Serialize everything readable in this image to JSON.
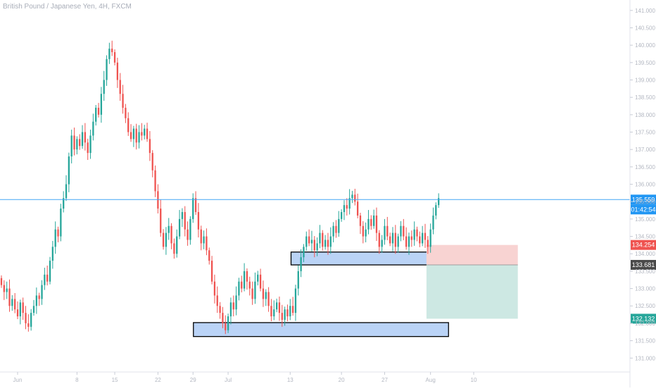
{
  "chart_data": {
    "type": "candlestick",
    "title": "British Pound / Japanese Yen, 4H, FXCM",
    "ylim": [
      130.6,
      141.3
    ],
    "y_ticks": [
      "141.500",
      "141.000",
      "140.500",
      "140.000",
      "139.500",
      "139.000",
      "138.500",
      "138.000",
      "137.500",
      "137.000",
      "136.500",
      "136.000",
      "135.500",
      "135.000",
      "134.500",
      "134.000",
      "133.500",
      "133.000",
      "132.500",
      "132.000",
      "131.500",
      "131.000"
    ],
    "x_ticks": [
      "Jun",
      "8",
      "15",
      "22",
      "29",
      "Jul",
      "13",
      "20",
      "27",
      "Aug",
      "10"
    ],
    "x_tick_positions": [
      6,
      28,
      42,
      58,
      71,
      84,
      107,
      126,
      142,
      159,
      175
    ],
    "candles_close": [
      133.1,
      132.9,
      133.0,
      132.5,
      132.7,
      132.4,
      132.2,
      132.6,
      132.3,
      132.0,
      131.9,
      132.3,
      132.5,
      132.8,
      132.7,
      133.1,
      133.4,
      133.2,
      133.8,
      134.2,
      134.7,
      134.5,
      135.3,
      135.6,
      136.0,
      136.8,
      137.4,
      137.0,
      137.3,
      137.1,
      137.5,
      137.2,
      136.9,
      137.4,
      137.8,
      138.2,
      138.0,
      138.6,
      139.0,
      139.6,
      139.9,
      139.8,
      139.5,
      139.0,
      138.6,
      138.2,
      137.9,
      137.5,
      137.3,
      137.6,
      137.2,
      137.5,
      137.4,
      137.6,
      137.3,
      136.9,
      136.4,
      135.8,
      135.3,
      134.6,
      134.2,
      134.6,
      134.8,
      134.3,
      134.0,
      134.5,
      135.0,
      135.2,
      134.7,
      134.4,
      135.0,
      135.6,
      135.2,
      134.7,
      134.3,
      134.5,
      134.1,
      133.8,
      133.2,
      132.8,
      132.5,
      132.3,
      132.0,
      131.8,
      132.2,
      132.6,
      132.4,
      132.8,
      133.2,
      133.0,
      133.5,
      133.2,
      133.0,
      132.7,
      133.2,
      133.4,
      133.0,
      132.7,
      132.9,
      132.5,
      132.2,
      132.4,
      132.6,
      132.3,
      132.1,
      132.4,
      132.2,
      132.5,
      132.3,
      133.0,
      133.5,
      133.9,
      134.2,
      134.5,
      134.3,
      134.4,
      134.1,
      134.3,
      134.6,
      134.2,
      134.4,
      134.2,
      134.5,
      134.8,
      134.6,
      135.0,
      135.2,
      135.4,
      135.3,
      135.6,
      135.7,
      135.5,
      135.1,
      134.8,
      134.5,
      134.7,
      135.0,
      134.8,
      135.1,
      134.6,
      134.2,
      134.4,
      134.8,
      134.5,
      134.3,
      134.6,
      134.2,
      134.5,
      134.8,
      134.5,
      134.2,
      134.5,
      134.4,
      134.7,
      134.5,
      134.3,
      134.6,
      134.4,
      134.2,
      134.7,
      135.1,
      135.4,
      135.6
    ],
    "current_price": "135.559",
    "countdown": "01:42:54",
    "stop_price": "134.254",
    "entry_price": "133.681",
    "target_price": "132.132",
    "zones": [
      {
        "y_top": 134.05,
        "y_bottom": 133.68,
        "x_start": 0.462,
        "x_end": 0.712
      },
      {
        "y_top": 132.02,
        "y_bottom": 131.62,
        "x_start": 0.307,
        "x_end": 0.712
      }
    ],
    "position": {
      "x_start": 0.677,
      "x_end": 0.822,
      "stop": 134.254,
      "entry": 133.681,
      "target": 132.132
    },
    "colors": {
      "up": "#26a69a",
      "down": "#ef5350",
      "price_line": "#42a5f5",
      "zone_fill": "#aecbf5",
      "zone_stroke": "#000000",
      "risk": "#f8d3d2",
      "reward": "#cde8e3",
      "stop_badge": "#ef5350",
      "entry_badge": "#4a4a4a",
      "target_badge": "#26a69a",
      "price_badge": "#2196f3"
    }
  }
}
